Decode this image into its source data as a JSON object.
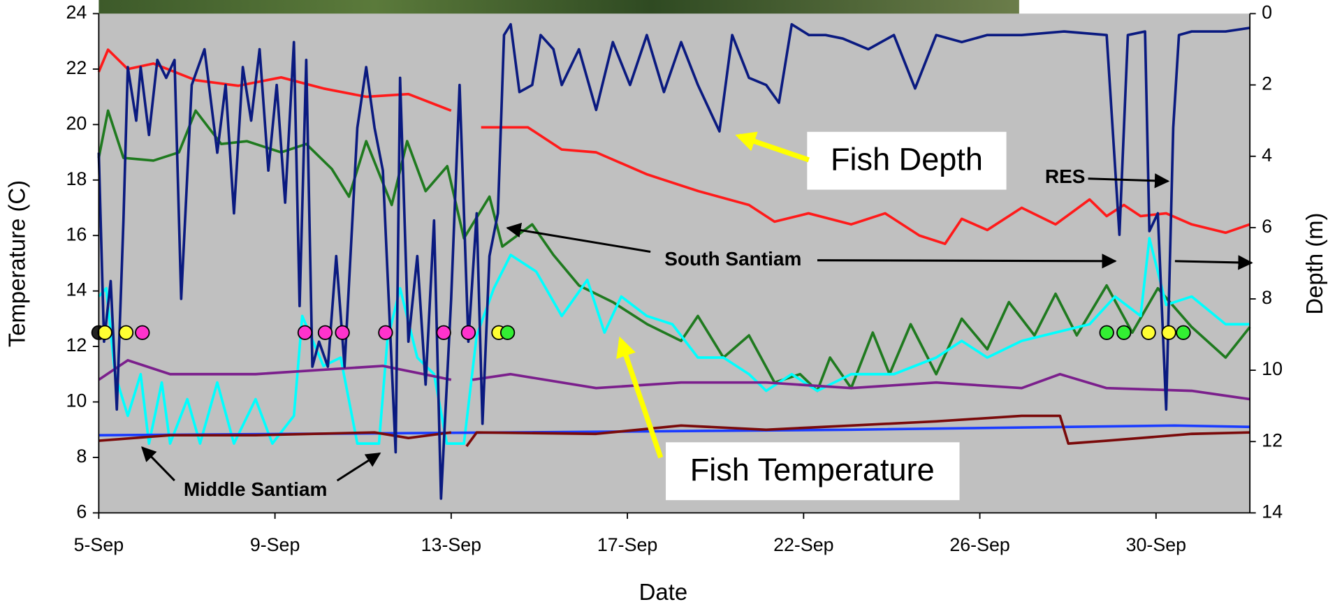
{
  "chart_data": {
    "type": "line",
    "x_label": "Date",
    "y_label": "Temperature (C)",
    "y2_label": "Depth (m)",
    "xlim": [
      5,
      31.13
    ],
    "ylim": [
      6,
      24
    ],
    "y2lim": [
      0,
      14
    ],
    "y2_inverted": true,
    "xticks": [
      {
        "value": 5,
        "label": "5-Sep"
      },
      {
        "value": 9,
        "label": "9-Sep"
      },
      {
        "value": 13,
        "label": "13-Sep"
      },
      {
        "value": 17,
        "label": "17-Sep"
      },
      {
        "value": 21,
        "label": "22-Sep"
      },
      {
        "value": 25,
        "label": "26-Sep"
      },
      {
        "value": 29,
        "label": "30-Sep"
      }
    ],
    "yticks": [
      6,
      8,
      10,
      12,
      14,
      16,
      18,
      20,
      22,
      24
    ],
    "y2ticks": [
      0,
      2,
      4,
      6,
      8,
      10,
      12,
      14
    ],
    "background": "#c0c0c0",
    "series": [
      {
        "color": "#ff1a1a",
        "x": [
          5.0,
          5.21,
          5.66,
          6.24,
          7.2,
          8.17,
          9.14,
          10.1,
          11.07,
          12.03,
          13.0,
          13.3,
          13.68,
          13.97,
          14.74,
          15.51,
          16.29,
          17.45,
          18.61,
          19.76,
          20.34,
          21.11,
          22.08,
          22.85,
          23.63,
          24.21,
          24.59,
          25.17,
          25.95,
          26.72,
          27.49,
          27.88,
          28.27,
          28.65,
          29.23,
          29.81,
          30.58,
          31.13
        ],
        "values": [
          21.9,
          22.7,
          22.0,
          22.2,
          21.6,
          21.4,
          21.7,
          21.3,
          21.0,
          21.1,
          20.5,
          null,
          19.9,
          19.9,
          19.9,
          19.1,
          19.0,
          18.2,
          17.6,
          17.1,
          16.5,
          16.8,
          16.4,
          16.8,
          16.0,
          15.7,
          16.6,
          16.2,
          17.0,
          16.4,
          17.3,
          16.7,
          17.1,
          16.7,
          16.8,
          16.4,
          16.1,
          16.4
        ]
      },
      {
        "color": "#1f7a1f",
        "x": [
          5.0,
          5.21,
          5.56,
          6.24,
          6.82,
          7.2,
          7.78,
          8.36,
          9.14,
          9.71,
          10.29,
          10.68,
          11.07,
          11.65,
          12.0,
          12.42,
          12.91,
          13.29,
          13.87,
          14.16,
          14.84,
          15.32,
          15.9,
          16.67,
          17.45,
          18.22,
          18.6,
          19.18,
          19.76,
          20.34,
          20.92,
          21.31,
          21.6,
          22.08,
          22.57,
          22.95,
          23.43,
          24.01,
          24.59,
          25.17,
          25.66,
          26.24,
          26.72,
          27.2,
          27.88,
          28.46,
          29.04,
          29.81,
          30.58,
          31.13
        ],
        "values": [
          18.8,
          20.5,
          18.8,
          18.7,
          19.0,
          20.5,
          19.3,
          19.4,
          19.0,
          19.3,
          18.4,
          17.4,
          19.4,
          17.1,
          19.4,
          17.6,
          18.5,
          15.9,
          17.4,
          15.6,
          16.4,
          15.3,
          14.2,
          13.6,
          12.8,
          12.2,
          13.1,
          11.6,
          12.4,
          10.7,
          11.0,
          10.4,
          11.6,
          10.5,
          12.5,
          11.0,
          12.8,
          11.0,
          13.0,
          11.9,
          13.6,
          12.4,
          13.9,
          12.4,
          14.2,
          12.5,
          14.1,
          12.7,
          11.6,
          12.7
        ]
      },
      {
        "color": "#00ffff",
        "x": [
          5.0,
          5.17,
          5.37,
          5.66,
          5.95,
          6.14,
          6.43,
          6.62,
          7.01,
          7.3,
          7.69,
          8.07,
          8.56,
          8.94,
          9.43,
          9.62,
          10.1,
          10.49,
          10.87,
          11.36,
          11.55,
          11.84,
          12.23,
          12.61,
          12.9,
          13.29,
          13.58,
          13.97,
          14.35,
          14.93,
          15.51,
          16.09,
          16.48,
          16.86,
          17.44,
          18.02,
          18.6,
          19.18,
          19.76,
          20.15,
          20.73,
          21.31,
          22.08,
          23.05,
          24.01,
          24.59,
          25.17,
          25.95,
          26.72,
          27.49,
          28.07,
          28.65,
          28.85,
          29.23,
          29.81,
          30.58,
          31.13
        ],
        "values": [
          13.8,
          14.1,
          11.0,
          9.5,
          11.0,
          8.5,
          10.7,
          8.5,
          10.1,
          8.5,
          10.7,
          8.5,
          10.1,
          8.5,
          9.5,
          13.1,
          11.3,
          11.6,
          8.5,
          8.5,
          12.2,
          14.1,
          11.6,
          11.0,
          8.5,
          8.5,
          12.4,
          14.1,
          15.3,
          14.7,
          13.1,
          14.4,
          12.5,
          13.8,
          13.1,
          12.8,
          11.6,
          11.6,
          11.0,
          10.4,
          11.0,
          10.4,
          11.0,
          11.0,
          11.6,
          12.2,
          11.6,
          12.2,
          12.5,
          12.8,
          13.8,
          13.1,
          15.9,
          13.5,
          13.8,
          12.8,
          12.8
        ]
      },
      {
        "color": "#7b1f8c",
        "x": [
          5.0,
          5.66,
          6.62,
          8.56,
          10.49,
          11.45,
          13.0,
          13.2,
          13.48,
          14.35,
          16.29,
          18.22,
          20.15,
          22.08,
          24.01,
          25.95,
          26.82,
          27.88,
          29.81,
          31.13
        ],
        "values": [
          10.8,
          11.5,
          11.0,
          11.0,
          11.2,
          11.3,
          10.8,
          null,
          10.8,
          11.0,
          10.5,
          10.7,
          10.7,
          10.5,
          10.7,
          10.5,
          11.0,
          10.5,
          10.4,
          10.1
        ]
      },
      {
        "color": "#1a3cff",
        "x": [
          5.0,
          14.35,
          22.08,
          29.42,
          31.13
        ],
        "values": [
          8.8,
          8.9,
          9.0,
          9.15,
          9.1
        ]
      },
      {
        "color": "#7a0a0a",
        "x": [
          5.0,
          6.62,
          8.56,
          11.26,
          12.03,
          13.0,
          13.15,
          13.35,
          13.58,
          16.29,
          18.22,
          20.15,
          22.08,
          24.01,
          25.95,
          26.82,
          27.01,
          27.88,
          29.81,
          31.13
        ],
        "values": [
          8.6,
          8.8,
          8.8,
          8.9,
          8.7,
          8.9,
          null,
          8.4,
          8.9,
          8.85,
          9.15,
          9.0,
          9.15,
          9.3,
          9.5,
          9.5,
          8.5,
          8.6,
          8.85,
          8.9
        ]
      },
      {
        "color": "#0a1a80",
        "axis": "y2",
        "x": [
          5.0,
          5.12,
          5.27,
          5.41,
          5.56,
          5.66,
          5.85,
          5.95,
          6.14,
          6.33,
          6.53,
          6.72,
          6.87,
          7.11,
          7.4,
          7.69,
          7.88,
          8.07,
          8.27,
          8.46,
          8.65,
          8.85,
          9.04,
          9.23,
          9.43,
          9.56,
          9.71,
          9.85,
          10.0,
          10.2,
          10.39,
          10.58,
          10.87,
          11.07,
          11.26,
          11.45,
          11.74,
          11.84,
          12.03,
          12.23,
          12.42,
          12.61,
          12.77,
          13.0,
          13.19,
          13.39,
          13.58,
          13.71,
          13.87,
          14.06,
          14.2,
          14.35,
          14.55,
          14.84,
          15.03,
          15.32,
          15.51,
          15.9,
          16.29,
          16.67,
          17.06,
          17.44,
          17.83,
          18.22,
          18.6,
          19.09,
          19.38,
          19.76,
          20.15,
          20.44,
          20.73,
          21.12,
          21.5,
          21.89,
          22.47,
          23.05,
          23.53,
          24.01,
          24.59,
          25.17,
          25.95,
          26.91,
          27.88,
          28.17,
          28.36,
          28.75,
          28.85,
          29.04,
          29.23,
          29.39,
          29.52,
          29.81,
          30.58,
          31.13
        ],
        "values": [
          3.9,
          9.2,
          7.5,
          11.1,
          5.8,
          1.5,
          3.0,
          1.5,
          3.4,
          1.3,
          1.8,
          1.3,
          8.0,
          2.0,
          1.0,
          3.9,
          2.0,
          5.6,
          1.5,
          3.0,
          1.0,
          4.4,
          2.0,
          5.3,
          0.8,
          8.2,
          1.3,
          9.9,
          9.2,
          9.9,
          6.8,
          9.9,
          3.2,
          1.5,
          3.2,
          4.4,
          12.3,
          1.8,
          9.2,
          6.8,
          10.4,
          5.8,
          13.6,
          8.0,
          2.0,
          9.2,
          5.6,
          11.5,
          6.8,
          5.6,
          0.6,
          0.3,
          2.2,
          2.0,
          0.6,
          1.0,
          2.0,
          1.0,
          2.7,
          0.8,
          2.0,
          0.6,
          2.2,
          0.8,
          2.0,
          3.3,
          0.6,
          1.8,
          2.0,
          2.5,
          0.3,
          0.6,
          0.6,
          0.7,
          1.0,
          0.6,
          2.1,
          0.6,
          0.8,
          0.6,
          0.6,
          0.5,
          0.6,
          6.2,
          0.6,
          0.5,
          6.1,
          5.6,
          11.1,
          3.2,
          0.6,
          0.5,
          0.5,
          0.4
        ]
      },
      {
        "type": "scatter",
        "x": [
          5.0,
          5.14,
          5.62,
          5.99,
          9.68,
          10.14,
          10.53,
          11.51,
          12.83,
          13.39,
          14.08,
          14.28,
          27.88,
          28.27,
          28.83,
          29.29,
          29.62
        ],
        "values": [
          12.5,
          12.5,
          12.5,
          12.5,
          12.5,
          12.5,
          12.5,
          12.5,
          12.5,
          12.5,
          12.5,
          12.5,
          12.5,
          12.5,
          12.5,
          12.5,
          12.5
        ],
        "colors": [
          "#222222",
          "#ffff33",
          "#ffff33",
          "#ff33cc",
          "#ff33cc",
          "#ff33cc",
          "#ff33cc",
          "#ff33cc",
          "#ff33cc",
          "#ff33cc",
          "#ffff33",
          "#33ee33",
          "#33ee33",
          "#33ee33",
          "#ffff33",
          "#ffff33",
          "#33ee33"
        ]
      }
    ],
    "annotations": [
      "Fish Depth",
      "Fish Temperature",
      "South Santiam",
      "Middle Santiam",
      "RES"
    ]
  }
}
